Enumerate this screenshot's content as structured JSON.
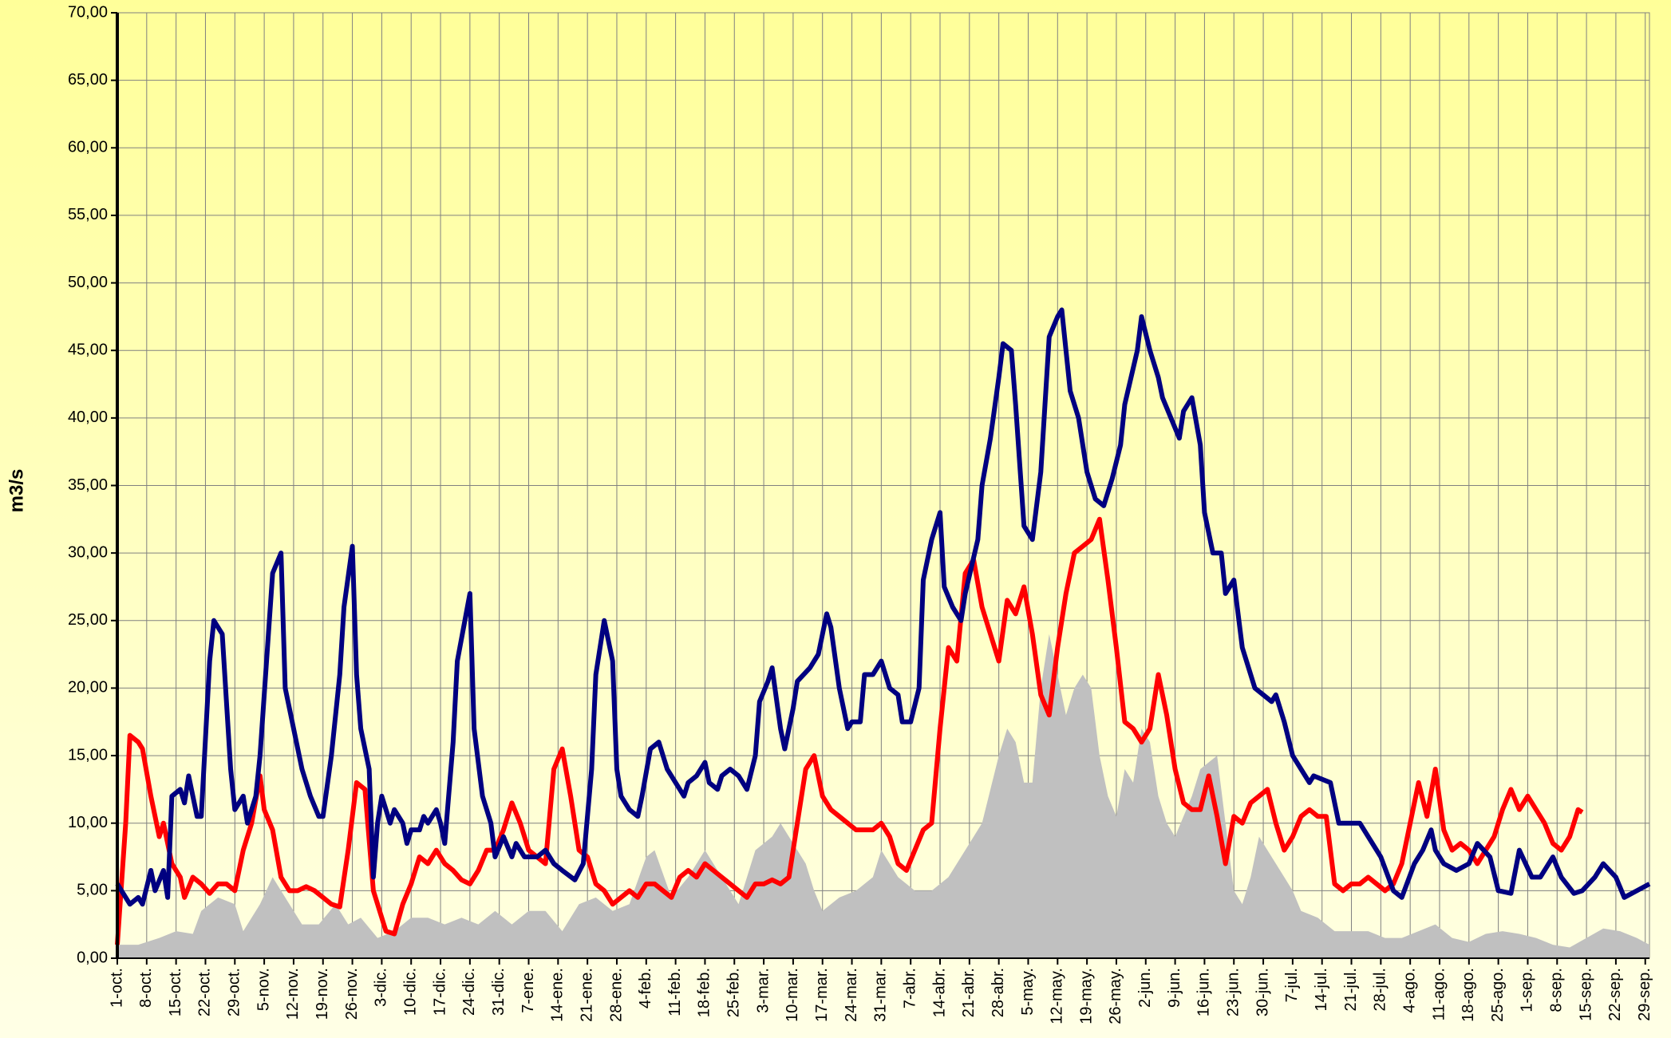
{
  "chart_data": {
    "type": "line",
    "ylabel": "m3/s",
    "xlim": [
      0,
      365
    ],
    "xticks": [
      {
        "value": 0,
        "label": "1-oct."
      },
      {
        "value": 7,
        "label": "8-oct."
      },
      {
        "value": 14,
        "label": "15-oct."
      },
      {
        "value": 21,
        "label": "22-oct."
      },
      {
        "value": 28,
        "label": "29-oct."
      },
      {
        "value": 35,
        "label": "5-nov."
      },
      {
        "value": 42,
        "label": "12-nov."
      },
      {
        "value": 49,
        "label": "19-nov."
      },
      {
        "value": 56,
        "label": "26-nov."
      },
      {
        "value": 63,
        "label": "3-dic."
      },
      {
        "value": 70,
        "label": "10-dic."
      },
      {
        "value": 77,
        "label": "17-dic."
      },
      {
        "value": 84,
        "label": "24-dic."
      },
      {
        "value": 91,
        "label": "31-dic."
      },
      {
        "value": 98,
        "label": "7-ene."
      },
      {
        "value": 105,
        "label": "14-ene."
      },
      {
        "value": 112,
        "label": "21-ene."
      },
      {
        "value": 119,
        "label": "28-ene."
      },
      {
        "value": 126,
        "label": "4-feb."
      },
      {
        "value": 133,
        "label": "11-feb."
      },
      {
        "value": 140,
        "label": "18-feb."
      },
      {
        "value": 147,
        "label": "25-feb."
      },
      {
        "value": 154,
        "label": "3-mar."
      },
      {
        "value": 161,
        "label": "10-mar."
      },
      {
        "value": 168,
        "label": "17-mar."
      },
      {
        "value": 175,
        "label": "24-mar."
      },
      {
        "value": 182,
        "label": "31-mar."
      },
      {
        "value": 189,
        "label": "7-abr."
      },
      {
        "value": 196,
        "label": "14-abr."
      },
      {
        "value": 203,
        "label": "21-abr."
      },
      {
        "value": 210,
        "label": "28-abr."
      },
      {
        "value": 217,
        "label": "5-may."
      },
      {
        "value": 224,
        "label": "12-may."
      },
      {
        "value": 231,
        "label": "19-may."
      },
      {
        "value": 238,
        "label": "26-may."
      },
      {
        "value": 245,
        "label": "2-jun."
      },
      {
        "value": 252,
        "label": "9-jun."
      },
      {
        "value": 259,
        "label": "16-jun."
      },
      {
        "value": 266,
        "label": "23-jun."
      },
      {
        "value": 273,
        "label": "30-jun."
      },
      {
        "value": 280,
        "label": "7-jul."
      },
      {
        "value": 287,
        "label": "14-jul."
      },
      {
        "value": 294,
        "label": "21-jul."
      },
      {
        "value": 301,
        "label": "28-jul."
      },
      {
        "value": 308,
        "label": "4-ago."
      },
      {
        "value": 315,
        "label": "11-ago."
      },
      {
        "value": 322,
        "label": "18-ago."
      },
      {
        "value": 329,
        "label": "25-ago."
      },
      {
        "value": 336,
        "label": "1-sep."
      },
      {
        "value": 343,
        "label": "8-sep."
      },
      {
        "value": 350,
        "label": "15-sep."
      },
      {
        "value": 357,
        "label": "22-sep."
      },
      {
        "value": 364,
        "label": "29-sep."
      }
    ],
    "ylim": [
      0,
      70
    ],
    "yticks": [
      {
        "value": 0,
        "label": "0,00"
      },
      {
        "value": 5,
        "label": "5,00"
      },
      {
        "value": 10,
        "label": "10,00"
      },
      {
        "value": 15,
        "label": "15,00"
      },
      {
        "value": 20,
        "label": "20,00"
      },
      {
        "value": 25,
        "label": "25,00"
      },
      {
        "value": 30,
        "label": "30,00"
      },
      {
        "value": 35,
        "label": "35,00"
      },
      {
        "value": 40,
        "label": "40,00"
      },
      {
        "value": 45,
        "label": "45,00"
      },
      {
        "value": 50,
        "label": "50,00"
      },
      {
        "value": 55,
        "label": "55,00"
      },
      {
        "value": 60,
        "label": "60,00"
      },
      {
        "value": 65,
        "label": "65,00"
      },
      {
        "value": 70,
        "label": "70,00"
      }
    ],
    "grid": true,
    "series": [
      {
        "type": "area",
        "color": "#c0c0c0",
        "x": [
          0,
          5,
          10,
          14,
          18,
          20,
          24,
          28,
          30,
          34,
          37,
          40,
          44,
          48,
          52,
          55,
          58,
          62,
          66,
          70,
          74,
          78,
          82,
          86,
          90,
          94,
          98,
          102,
          106,
          110,
          114,
          118,
          122,
          126,
          128,
          132,
          136,
          140,
          144,
          148,
          152,
          156,
          158,
          162,
          164,
          166,
          168,
          172,
          176,
          180,
          182,
          186,
          190,
          194,
          198,
          202,
          206,
          210,
          212,
          214,
          216,
          218,
          220,
          222,
          224,
          226,
          228,
          230,
          232,
          234,
          236,
          238,
          240,
          242,
          244,
          246,
          248,
          250,
          252,
          256,
          258,
          260,
          262,
          264,
          266,
          268,
          270,
          272,
          274,
          276,
          278,
          280,
          282,
          286,
          290,
          294,
          298,
          302,
          306,
          310,
          314,
          318,
          322,
          326,
          330,
          334,
          338,
          342,
          346,
          350,
          354,
          358,
          362,
          365
        ],
        "values": [
          1,
          1,
          1.5,
          2,
          1.8,
          3.5,
          4.5,
          4,
          2,
          4,
          6,
          4.5,
          2.5,
          2.5,
          4,
          2.5,
          3,
          1.5,
          2,
          3,
          3,
          2.5,
          3,
          2.5,
          3.5,
          2.5,
          3.5,
          3.5,
          2,
          4,
          4.5,
          3.5,
          4,
          7.5,
          8,
          4.5,
          6,
          8,
          6,
          4,
          8,
          9,
          10,
          8,
          7,
          5,
          3.5,
          4.5,
          5,
          6,
          8,
          6,
          5,
          5,
          6,
          8,
          10,
          15,
          17,
          16,
          13,
          13,
          20,
          24,
          21,
          18,
          20,
          21,
          20,
          15,
          12,
          10.5,
          14,
          13,
          17,
          16,
          12,
          10,
          9,
          12,
          14,
          14.5,
          15,
          10,
          5,
          4,
          6,
          9,
          8,
          7,
          6,
          5,
          3.5,
          3,
          2,
          2,
          2,
          1.5,
          1.5,
          2,
          2.5,
          1.5,
          1.2,
          1.8,
          2,
          1.8,
          1.5,
          1,
          0.8,
          1.5,
          2.2,
          2,
          1.5,
          1
        ]
      },
      {
        "type": "line",
        "color": "#ff0000",
        "x": [
          0,
          2,
          3,
          5,
          6,
          8,
          10,
          11,
          13,
          15,
          16,
          18,
          20,
          22,
          24,
          26,
          28,
          30,
          32,
          34,
          35,
          37,
          39,
          41,
          43,
          45,
          47,
          49,
          51,
          53,
          55,
          57,
          59,
          61,
          62,
          64,
          66,
          68,
          70,
          72,
          74,
          76,
          78,
          80,
          82,
          84,
          86,
          88,
          90,
          92,
          94,
          96,
          98,
          100,
          102,
          104,
          106,
          108,
          110,
          112,
          114,
          116,
          118,
          120,
          122,
          124,
          126,
          128,
          130,
          132,
          134,
          136,
          138,
          140,
          142,
          144,
          146,
          148,
          150,
          152,
          154,
          156,
          158,
          160,
          162,
          164,
          166,
          168,
          170,
          172,
          174,
          176,
          178,
          180,
          182,
          184,
          186,
          188,
          190,
          192,
          194,
          196,
          198,
          200,
          202,
          204,
          206,
          208,
          210,
          212,
          214,
          216,
          218,
          220,
          222,
          224,
          226,
          228,
          230,
          232,
          234,
          236,
          238,
          240,
          242,
          244,
          246,
          248,
          250,
          252,
          254,
          256,
          258,
          260,
          262,
          264,
          266,
          268,
          270,
          272,
          274,
          276,
          278,
          280,
          282,
          284,
          286,
          288,
          290,
          292,
          294,
          296,
          298,
          300,
          302,
          304,
          306,
          308,
          310,
          312,
          314,
          316,
          318,
          320,
          322,
          324,
          326,
          328,
          330,
          332,
          334,
          336,
          338,
          340,
          342,
          344,
          346,
          348,
          349
        ],
        "values": [
          1,
          10,
          16.5,
          16,
          15.5,
          12,
          9,
          10,
          7,
          6,
          4.5,
          6,
          5.5,
          4.8,
          5.5,
          5.5,
          5,
          8,
          10,
          13.5,
          11,
          9.5,
          6,
          5,
          5,
          5.3,
          5,
          4.5,
          4,
          3.8,
          8,
          13,
          12.5,
          5,
          4,
          2,
          1.8,
          4,
          5.5,
          7.5,
          7,
          8,
          7,
          6.5,
          5.8,
          5.5,
          6.5,
          8,
          8,
          9.5,
          11.5,
          10,
          8,
          7.5,
          7,
          14,
          15.5,
          12,
          8,
          7.5,
          5.5,
          5,
          4,
          4.5,
          5,
          4.5,
          5.5,
          5.5,
          5,
          4.5,
          6,
          6.5,
          6,
          7,
          6.5,
          6,
          5.5,
          5,
          4.5,
          5.5,
          5.5,
          5.8,
          5.5,
          6,
          10,
          14,
          15,
          12,
          11,
          10.5,
          10,
          9.5,
          9.5,
          9.5,
          10,
          9,
          7,
          6.5,
          8,
          9.5,
          10,
          17,
          23,
          22,
          28.5,
          29.5,
          26,
          24,
          22,
          26.5,
          25.5,
          27.5,
          24,
          19.5,
          18,
          23,
          27,
          30,
          30.5,
          31,
          32.5,
          28,
          23,
          17.5,
          17,
          16,
          17,
          21,
          18,
          14,
          11.5,
          11,
          11,
          13.5,
          10.5,
          7,
          10.5,
          10,
          11.5,
          12,
          12.5,
          10,
          8,
          9,
          10.5,
          11,
          10.5,
          10.5,
          5.5,
          5,
          5.5,
          5.5,
          6,
          5.5,
          5,
          5.5,
          7,
          10,
          13,
          10.5,
          14,
          9.5,
          8,
          8.5,
          8,
          7,
          8,
          9,
          11,
          12.5,
          11,
          12,
          11,
          10,
          8.5,
          8,
          9,
          11,
          10.8
        ]
      },
      {
        "type": "line",
        "color": "#000080",
        "x": [
          0,
          3,
          5,
          6,
          8,
          9,
          11,
          12,
          13,
          15,
          16,
          17,
          19,
          20,
          22,
          23,
          25,
          27,
          28,
          30,
          31,
          33,
          34,
          36,
          37,
          39,
          40,
          42,
          44,
          46,
          48,
          49,
          51,
          53,
          54,
          56,
          57,
          58,
          60,
          61,
          62,
          63,
          65,
          66,
          68,
          69,
          70,
          72,
          73,
          74,
          76,
          77,
          78,
          80,
          81,
          84,
          85,
          87,
          89,
          90,
          92,
          94,
          95,
          97,
          100,
          102,
          104,
          106,
          109,
          111,
          113,
          114,
          116,
          118,
          119,
          120,
          122,
          124,
          125,
          127,
          129,
          131,
          133,
          135,
          136,
          138,
          140,
          141,
          143,
          144,
          146,
          148,
          150,
          152,
          153,
          155,
          156,
          158,
          159,
          161,
          162,
          165,
          167,
          169,
          170,
          172,
          174,
          175,
          177,
          178,
          180,
          182,
          184,
          186,
          187,
          189,
          191,
          192,
          194,
          196,
          197,
          199,
          201,
          202,
          205,
          206,
          208,
          210,
          211,
          213,
          214,
          216,
          218,
          220,
          222,
          224,
          225,
          227,
          229,
          231,
          233,
          235,
          237,
          239,
          240,
          243,
          244,
          246,
          248,
          249,
          251,
          253,
          254,
          256,
          258,
          259,
          261,
          263,
          264,
          266,
          268,
          269,
          271,
          273,
          275,
          276,
          278,
          280,
          282,
          284,
          285,
          289,
          291,
          294,
          296,
          299,
          301,
          304,
          306,
          309,
          311,
          313,
          314,
          316,
          319,
          322,
          324,
          327,
          329,
          332,
          334,
          337,
          339,
          342,
          344,
          347,
          349,
          352,
          354,
          357,
          359,
          362,
          365
        ],
        "values": [
          5.5,
          4,
          4.5,
          4,
          6.5,
          5,
          6.5,
          4.5,
          12,
          12.5,
          11.5,
          13.5,
          10.5,
          10.5,
          22,
          25,
          24,
          14,
          11,
          12,
          10,
          12,
          15,
          24,
          28.5,
          30,
          20,
          17,
          14,
          12,
          10.5,
          10.5,
          15,
          21,
          26,
          30.5,
          21,
          17,
          14,
          6,
          10,
          12,
          10,
          11,
          10,
          8.5,
          9.5,
          9.5,
          10.5,
          10,
          11,
          10,
          8.5,
          16,
          22,
          27,
          17,
          12,
          10,
          7.5,
          9,
          7.5,
          8.5,
          7.5,
          7.5,
          8,
          7,
          6.5,
          5.8,
          7,
          14,
          21,
          25,
          22,
          14,
          12,
          11,
          10.5,
          12,
          15.5,
          16,
          14,
          13,
          12,
          13,
          13.5,
          14.5,
          13,
          12.5,
          13.5,
          14,
          13.5,
          12.5,
          15,
          19,
          20.5,
          21.5,
          17,
          15.5,
          18.5,
          20.5,
          21.5,
          22.5,
          25.5,
          24.5,
          20,
          17,
          17.5,
          17.5,
          21,
          21,
          22,
          20,
          19.5,
          17.5,
          17.5,
          20,
          28,
          31,
          33,
          27.5,
          26,
          25,
          27,
          31,
          35,
          38.5,
          43,
          45.5,
          45,
          41,
          32,
          31,
          36,
          46,
          47.5,
          48,
          42,
          40,
          36,
          34,
          33.5,
          35.5,
          38,
          41,
          45,
          47.5,
          45,
          43,
          41.5,
          40,
          38.5,
          40.5,
          41.5,
          38,
          33,
          30,
          30,
          27,
          28,
          23,
          22,
          20,
          19.5,
          19,
          19.5,
          17.5,
          15,
          14,
          13,
          13.5,
          13,
          10,
          10,
          10,
          8.5,
          7.5,
          5,
          4.5,
          7,
          8,
          9.5,
          8,
          7,
          6.5,
          7,
          8.5,
          7.5,
          5,
          4.8,
          8,
          6,
          6,
          7.5,
          6,
          4.8,
          5,
          6,
          7,
          6,
          4.5,
          5,
          5.5
        ]
      }
    ]
  }
}
